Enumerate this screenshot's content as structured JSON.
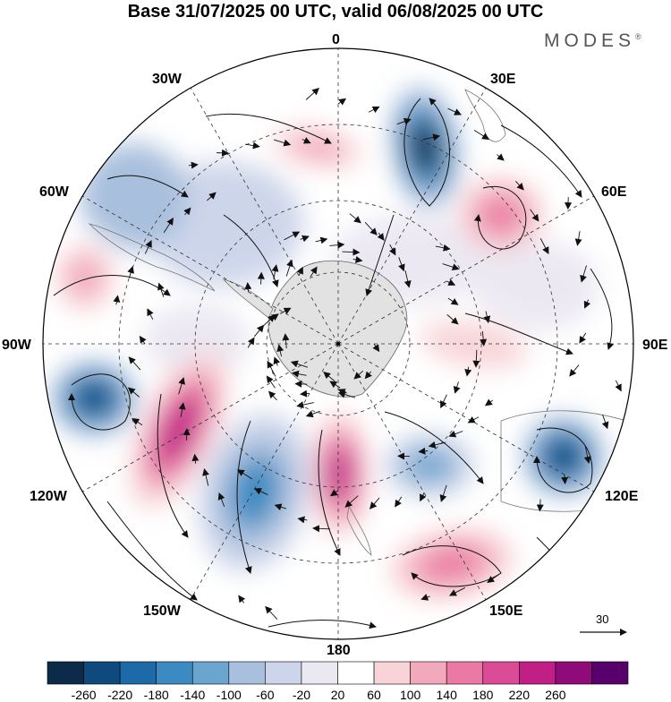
{
  "title": "Base 31/07/2025 00 UTC, valid 06/08/2025 00 UTC",
  "brand": {
    "name": "MODES",
    "mark": "®"
  },
  "map": {
    "projection": "south-polar-stereographic",
    "longitude_labels": {
      "lon_0": "0",
      "lon_30e": "30E",
      "lon_60e": "60E",
      "lon_90e": "90E",
      "lon_120e": "120E",
      "lon_150e": "150E",
      "lon_180": "180",
      "lon_150w": "150W",
      "lon_120w": "120W",
      "lon_90w": "90W",
      "lon_60w": "60W",
      "lon_30w": "30W"
    },
    "wind_reference_value": "30",
    "anomalies": [
      {
        "name": "anomaly-neg-south-africa",
        "value": -260
      },
      {
        "name": "anomaly-pos-east-africa",
        "value": 180
      },
      {
        "name": "anomaly-pos-south-atlantic",
        "value": 140
      },
      {
        "name": "anomaly-pos-west-atlantic",
        "value": 140
      },
      {
        "name": "anomaly-neg-pacific-120w",
        "value": -220
      },
      {
        "name": "anomaly-pos-pacific-130w",
        "value": 260
      },
      {
        "name": "anomaly-pos-ross-sea",
        "value": 240
      },
      {
        "name": "anomaly-neg-pacific-150w",
        "value": -140
      },
      {
        "name": "anomaly-neg-australia-se",
        "value": -220
      },
      {
        "name": "anomaly-pos-tasman-sea",
        "value": 180
      },
      {
        "name": "anomaly-pos-indian-ocean",
        "value": 100
      },
      {
        "name": "anomaly-neg-indian-ocean",
        "value": -120
      }
    ]
  },
  "colorbar": {
    "ticks": [
      "-260",
      "-220",
      "-180",
      "-140",
      "-100",
      "-60",
      "-20",
      "20",
      "60",
      "100",
      "140",
      "180",
      "220",
      "260"
    ],
    "colors": [
      "#0c2a4a",
      "#0e4a7e",
      "#1d6aa8",
      "#3b8bc2",
      "#6aa5cf",
      "#a8bfdd",
      "#cdd5ea",
      "#ebe8f2",
      "#ffffff",
      "#f8d4d8",
      "#f2a9bc",
      "#ea7aa5",
      "#dc4b96",
      "#c11f86",
      "#8f0b7a",
      "#57006b"
    ]
  }
}
